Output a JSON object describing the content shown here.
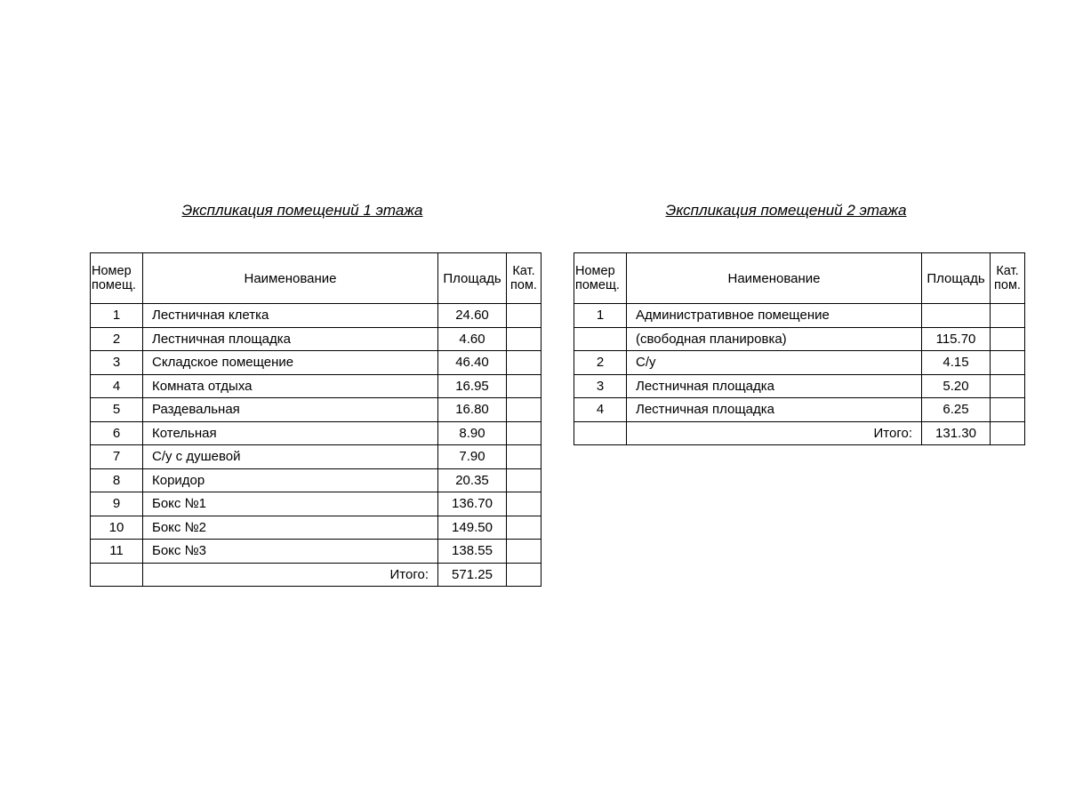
{
  "floor1": {
    "title": "Экспликация помещений 1 этажа",
    "headers": {
      "number": "Номер помещ.",
      "name": "Наименование",
      "area": "Площадь",
      "category": "Кат. пом."
    },
    "rows": [
      {
        "number": "1",
        "name": "Лестничная клетка",
        "area": "24.60"
      },
      {
        "number": "2",
        "name": "Лестничная площадка",
        "area": "4.60"
      },
      {
        "number": "3",
        "name": "Складское помещение",
        "area": "46.40"
      },
      {
        "number": "4",
        "name": "Комната отдыха",
        "area": "16.95"
      },
      {
        "number": "5",
        "name": "Раздевальная",
        "area": "16.80"
      },
      {
        "number": "6",
        "name": "Котельная",
        "area": "8.90"
      },
      {
        "number": "7",
        "name": "С/у с душевой",
        "area": "7.90"
      },
      {
        "number": "8",
        "name": "Коридор",
        "area": "20.35"
      },
      {
        "number": "9",
        "name": "Бокс №1",
        "area": "136.70"
      },
      {
        "number": "10",
        "name": "Бокс №2",
        "area": "149.50"
      },
      {
        "number": "11",
        "name": "Бокс №3",
        "area": "138.55"
      }
    ],
    "total_label": "Итого:",
    "total_value": "571.25"
  },
  "floor2": {
    "title": "Экспликация помещений 2 этажа",
    "headers": {
      "number": "Номер помещ.",
      "name": "Наименование",
      "area": "Площадь",
      "category": "Кат. пом."
    },
    "rows": [
      {
        "number": "1",
        "name": "Административное помещение",
        "area": ""
      },
      {
        "number": "",
        "name": "(свободная планировка)",
        "area": "115.70"
      },
      {
        "number": "2",
        "name": "С/у",
        "area": "4.15"
      },
      {
        "number": "3",
        "name": "Лестничная площадка",
        "area": "5.20"
      },
      {
        "number": "4",
        "name": "Лестничная площадка",
        "area": "6.25"
      }
    ],
    "total_label": "Итого:",
    "total_value": "131.30"
  }
}
